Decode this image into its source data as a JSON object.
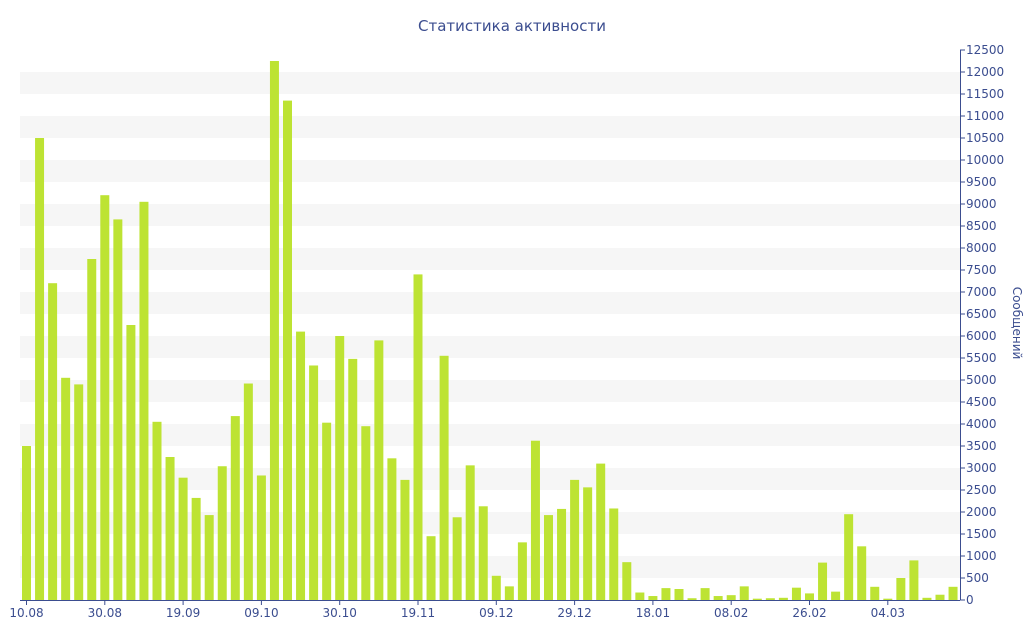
{
  "chart_data": {
    "type": "bar",
    "title": "Статистика активности",
    "xlabel": "",
    "ylabel": "Сообщений",
    "ylim": [
      0,
      12500
    ],
    "y_ticks": [
      0,
      500,
      1000,
      1500,
      2000,
      2500,
      3000,
      3500,
      4000,
      4500,
      5000,
      5500,
      6000,
      6500,
      7000,
      7500,
      8000,
      8500,
      9000,
      9500,
      10000,
      10500,
      11000,
      11500,
      12000,
      12500
    ],
    "y_axis_side": "right",
    "grid": "alternating horizontal bands",
    "x_tick_labels": [
      {
        "label": "10.08",
        "index": 0
      },
      {
        "label": "30.08",
        "index": 6
      },
      {
        "label": "19.09",
        "index": 12
      },
      {
        "label": "09.10",
        "index": 18
      },
      {
        "label": "30.10",
        "index": 24
      },
      {
        "label": "19.11",
        "index": 30
      },
      {
        "label": "09.12",
        "index": 36
      },
      {
        "label": "29.12",
        "index": 42
      },
      {
        "label": "18.01",
        "index": 48
      },
      {
        "label": "08.02",
        "index": 54
      },
      {
        "label": "26.02",
        "index": 60
      },
      {
        "label": "04.03",
        "index": 66
      }
    ],
    "values": [
      3500,
      10500,
      7200,
      5050,
      4900,
      7750,
      9200,
      8650,
      6250,
      9050,
      4050,
      3250,
      2780,
      2320,
      1930,
      3040,
      4180,
      4920,
      2830,
      12250,
      11350,
      6100,
      5330,
      4030,
      6000,
      5480,
      3950,
      5900,
      3220,
      2730,
      7400,
      1450,
      5550,
      1880,
      3060,
      2130,
      550,
      310,
      1310,
      3620,
      1930,
      2070,
      2730,
      2560,
      3100,
      2080,
      860,
      170,
      90,
      270,
      250,
      40,
      270,
      90,
      110,
      310,
      30,
      40,
      50,
      280,
      150,
      850,
      190,
      1950,
      1220,
      300,
      30,
      500,
      900,
      50,
      120,
      300
    ],
    "bar_color": "#bde333"
  }
}
